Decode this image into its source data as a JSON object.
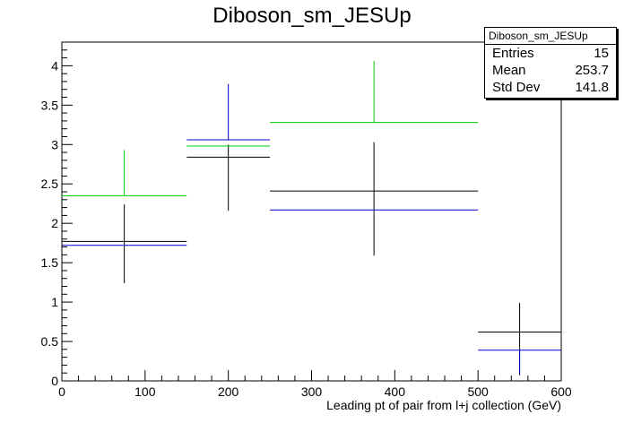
{
  "title": "Diboson_sm_JESUp",
  "stats": {
    "title": "Diboson_sm_JESUp",
    "rows": [
      {
        "label": "Entries",
        "value": "15"
      },
      {
        "label": "Mean",
        "value": "253.7"
      },
      {
        "label": "Std Dev",
        "value": "141.8"
      }
    ]
  },
  "chart_data": {
    "type": "scatter",
    "xlabel": "Leading pt of pair from l+j collection (GeV)",
    "ylabel": "",
    "xlim": [
      0,
      600
    ],
    "ylim": [
      0,
      4.3
    ],
    "xticks": [
      0,
      100,
      200,
      300,
      400,
      500,
      600
    ],
    "yticks": [
      0,
      0.5,
      1,
      1.5,
      2,
      2.5,
      3,
      3.5,
      4
    ],
    "xtick_labels": [
      "0",
      "100",
      "200",
      "300",
      "400",
      "500",
      "600"
    ],
    "ytick_labels": [
      "0",
      "0.5",
      "1",
      "1.5",
      "2",
      "2.5",
      "3",
      "3.5",
      "4"
    ],
    "bin_edges": [
      0,
      150,
      250,
      500,
      600
    ],
    "series": [
      {
        "color": "#000000",
        "values": [
          1.77,
          2.84,
          2.41,
          0.62
        ],
        "err_low": [
          0.53,
          0.68,
          0.82,
          0.55
        ],
        "err_high": [
          0.47,
          0.16,
          0.62,
          0.37
        ]
      },
      {
        "color": "#0000cc",
        "values": [
          1.72,
          3.06,
          2.17,
          0.39
        ],
        "err_low": [
          0.0,
          0.0,
          0.0,
          0.31
        ],
        "err_high": [
          0.0,
          0.71,
          0.0,
          0.0
        ]
      },
      {
        "color": "#00cc00",
        "values": [
          2.35,
          2.98,
          3.28,
          null
        ],
        "err_low": [
          0.0,
          0.0,
          0.0,
          0.0
        ],
        "err_high": [
          0.58,
          0.0,
          0.78,
          0.0
        ]
      }
    ]
  }
}
